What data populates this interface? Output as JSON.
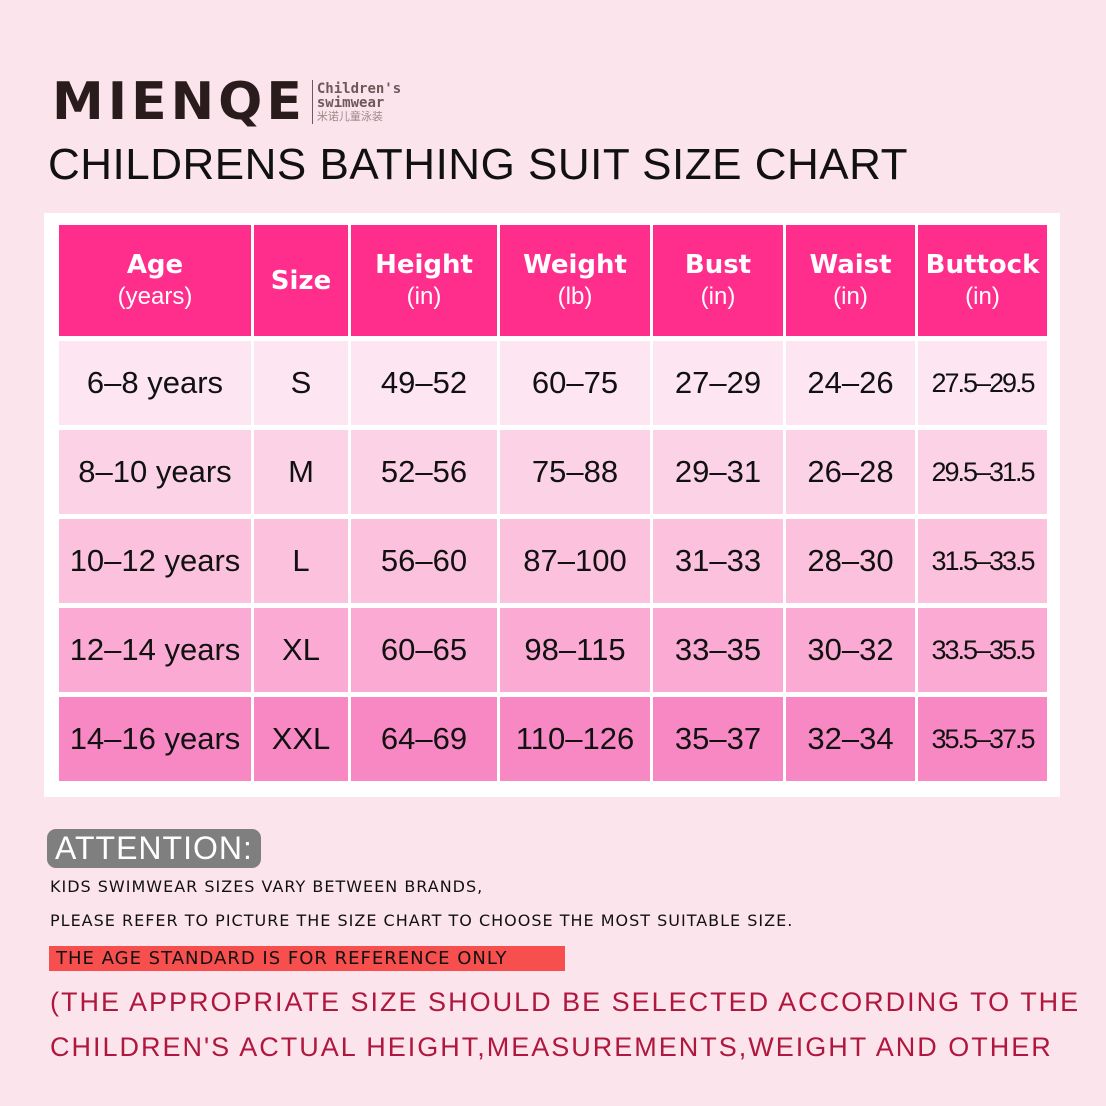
{
  "brand": {
    "name": "MIENQE",
    "sub1": "Children's",
    "sub2": "swimwear",
    "sub_cn": "米诺儿童泳装"
  },
  "title": "CHILDRENS BATHING SUIT SIZE CHART",
  "colors": {
    "header": "#ff2d8c",
    "rows": [
      "#fde6f1",
      "#fcd3e6",
      "#fbc1dd",
      "#faaad3",
      "#f888c3"
    ],
    "attention_bg": "#7f7f7f",
    "reference_bg": "#f74e4e",
    "note_red": "#b0173e"
  },
  "table": {
    "headers": [
      {
        "label": "Age",
        "unit": "(years)"
      },
      {
        "label": "Size",
        "unit": ""
      },
      {
        "label": "Height",
        "unit": "(in)"
      },
      {
        "label": "Weight",
        "unit": "(lb)"
      },
      {
        "label": "Bust",
        "unit": "(in)"
      },
      {
        "label": "Waist",
        "unit": "(in)"
      },
      {
        "label": "Buttock",
        "unit": "(in)"
      }
    ],
    "rows": [
      [
        "6–8 years",
        "S",
        "49–52",
        "60–75",
        "27–29",
        "24–26",
        "27.5–29.5"
      ],
      [
        "8–10 years",
        "M",
        "52–56",
        "75–88",
        "29–31",
        "26–28",
        "29.5–31.5"
      ],
      [
        "10–12 years",
        "L",
        "56–60",
        "87–100",
        "31–33",
        "28–30",
        "31.5–33.5"
      ],
      [
        "12–14 years",
        "XL",
        "60–65",
        "98–115",
        "33–35",
        "30–32",
        "33.5–35.5"
      ],
      [
        "14–16 years",
        "XXL",
        "64–69",
        "110–126",
        "35–37",
        "32–34",
        "35.5–37.5"
      ]
    ]
  },
  "attention": {
    "label": "ATTENTION:",
    "line1": "KIDS SWIMWEAR SIZES VARY BETWEEN BRANDS,",
    "line2": "PLEASE REFER TO PICTURE THE SIZE CHART TO CHOOSE THE MOST SUITABLE SIZE.",
    "reference": "THE AGE STANDARD IS FOR REFERENCE ONLY",
    "red1": "(THE APPROPRIATE SIZE SHOULD BE SELECTED ACCORDING TO THE",
    "red2": "CHILDREN'S ACTUAL HEIGHT,MEASUREMENTS,WEIGHT AND OTHER"
  }
}
